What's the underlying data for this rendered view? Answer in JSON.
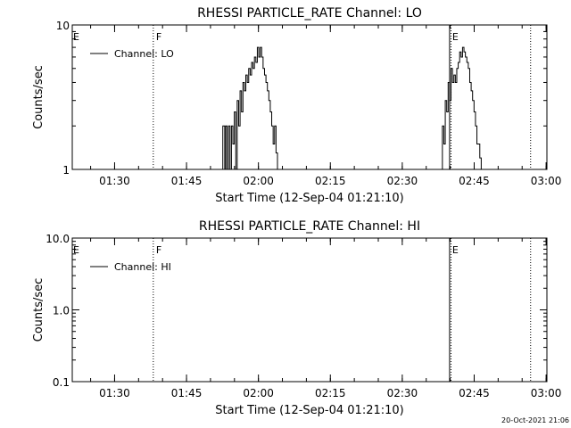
{
  "chart_data": [
    {
      "type": "line",
      "title": "RHESSI PARTICLE_RATE Channel: LO",
      "xlabel": "Start Time (12-Sep-04 01:21:10)",
      "ylabel": "Counts/sec",
      "yscale": "log",
      "ylim": [
        1,
        10
      ],
      "yticks": [
        {
          "v": 1,
          "label": "1"
        },
        {
          "v": 10,
          "label": "10"
        }
      ],
      "xlim_min": [
        0,
        99
      ],
      "xticks": [
        {
          "v": 8.83,
          "label": "01:30"
        },
        {
          "v": 23.83,
          "label": "01:45"
        },
        {
          "v": 38.83,
          "label": "02:00"
        },
        {
          "v": 53.83,
          "label": "02:15"
        },
        {
          "v": 68.83,
          "label": "02:30"
        },
        {
          "v": 83.83,
          "label": "02:45"
        },
        {
          "v": 98.83,
          "label": "03:00"
        }
      ],
      "legend": {
        "label": "Channel: LO",
        "placement": "top-left"
      },
      "markers": [
        {
          "v": 16.9,
          "label": "F",
          "style": "dotted"
        },
        {
          "v": 78.7,
          "label": "E",
          "style": "solid"
        },
        {
          "v": 79.0,
          "style": "dotted"
        },
        {
          "v": 95.6,
          "style": "dotted"
        }
      ],
      "left_marker_label": "E",
      "series": [
        {
          "name": "Channel: LO",
          "x": [
            31.2,
            31.4,
            31.6,
            31.8,
            32.0,
            32.3,
            32.6,
            32.9,
            33.2,
            33.5,
            33.8,
            34.1,
            34.4,
            34.7,
            35.0,
            35.3,
            35.6,
            35.9,
            36.2,
            36.5,
            36.8,
            37.1,
            37.4,
            37.7,
            38.0,
            38.3,
            38.6,
            38.9,
            39.2,
            39.5,
            39.8,
            40.1,
            40.4,
            40.7,
            41.0,
            41.3,
            41.6,
            41.9,
            42.2,
            42.5,
            42.8
          ],
          "y": [
            1,
            2,
            2,
            1,
            2,
            1,
            2,
            1,
            2,
            1.5,
            2.5,
            1,
            3,
            2,
            3.5,
            2.5,
            4,
            3.5,
            4.5,
            4,
            5,
            4.5,
            5.5,
            5,
            6,
            5.5,
            7,
            6,
            7,
            6,
            5,
            4.5,
            4,
            3.5,
            3,
            2.5,
            2,
            1.5,
            2,
            1.3,
            1
          ]
        },
        {
          "name": "Channel: LO",
          "x": [
            76.9,
            77.2,
            77.5,
            77.8,
            78.1,
            78.4,
            78.7,
            79.0,
            79.3,
            79.6,
            79.9,
            80.2,
            80.5,
            80.8,
            81.1,
            81.4,
            81.7,
            82.0,
            82.3,
            82.6,
            82.9,
            83.2,
            83.5,
            83.8,
            84.1,
            84.4,
            84.7,
            85.0,
            85.3
          ],
          "y": [
            1,
            2,
            1.5,
            3,
            2.5,
            4,
            3,
            5,
            4,
            4.5,
            4,
            5,
            5.5,
            6.5,
            6,
            7,
            6.5,
            6,
            5.5,
            5,
            4,
            3.5,
            3,
            2.5,
            2,
            1.5,
            1.5,
            1.2,
            1
          ]
        }
      ]
    },
    {
      "type": "line",
      "title": "RHESSI PARTICLE_RATE Channel: HI",
      "xlabel": "Start Time (12-Sep-04 01:21:10)",
      "ylabel": "Counts/sec",
      "yscale": "log",
      "ylim": [
        0.1,
        10
      ],
      "yticks": [
        {
          "v": 0.1,
          "label": "0.1"
        },
        {
          "v": 1,
          "label": "1.0"
        },
        {
          "v": 10,
          "label": "10.0"
        }
      ],
      "xlim_min": [
        0,
        99
      ],
      "xticks": [
        {
          "v": 8.83,
          "label": "01:30"
        },
        {
          "v": 23.83,
          "label": "01:45"
        },
        {
          "v": 38.83,
          "label": "02:00"
        },
        {
          "v": 53.83,
          "label": "02:15"
        },
        {
          "v": 68.83,
          "label": "02:30"
        },
        {
          "v": 83.83,
          "label": "02:45"
        },
        {
          "v": 98.83,
          "label": "03:00"
        }
      ],
      "legend": {
        "label": "Channel: HI",
        "placement": "top-left"
      },
      "markers": [
        {
          "v": 16.9,
          "label": "F",
          "style": "dotted"
        },
        {
          "v": 78.7,
          "label": "E",
          "style": "solid"
        },
        {
          "v": 79.0,
          "style": "dotted"
        },
        {
          "v": 95.6,
          "style": "dotted"
        }
      ],
      "left_marker_label": "E",
      "series": []
    }
  ],
  "footer": {
    "timestamp": "20-Oct-2021 21:06"
  }
}
